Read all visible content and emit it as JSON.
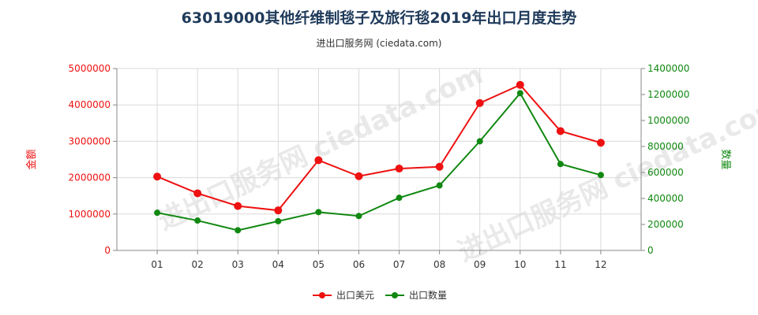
{
  "header": {
    "title": "63019000其他纤维制毯子及旅行毯2019年出口月度走势",
    "subtitle": "进出口服务网 (ciedata.com)"
  },
  "watermark": "进出口服务网 ciedata.com",
  "chart_data": {
    "type": "line",
    "categories": [
      "01",
      "02",
      "03",
      "04",
      "05",
      "06",
      "07",
      "08",
      "09",
      "10",
      "11",
      "12"
    ],
    "series": [
      {
        "name": "出口美元",
        "axis": "left",
        "color": "#ee1111",
        "values": [
          2030000,
          1570000,
          1220000,
          1100000,
          2480000,
          2040000,
          2250000,
          2300000,
          4050000,
          4550000,
          3280000,
          2960000
        ]
      },
      {
        "name": "出口数量",
        "axis": "right",
        "color": "#118811",
        "values": [
          290000,
          230000,
          155000,
          225000,
          295000,
          265000,
          405000,
          500000,
          840000,
          1210000,
          665000,
          580000
        ]
      }
    ],
    "y_left": {
      "label": "金额",
      "min": 0,
      "max": 5000000,
      "ticks": [
        "0",
        "1000000",
        "2000000",
        "3000000",
        "4000000",
        "5000000"
      ],
      "color": "#ee1111"
    },
    "y_right": {
      "label": "数量",
      "min": 0,
      "max": 1400000,
      "ticks": [
        "0",
        "200000",
        "400000",
        "600000",
        "800000",
        "1000000",
        "1200000",
        "1400000"
      ],
      "color": "#118811"
    },
    "grid": true,
    "legend_position": "bottom"
  }
}
